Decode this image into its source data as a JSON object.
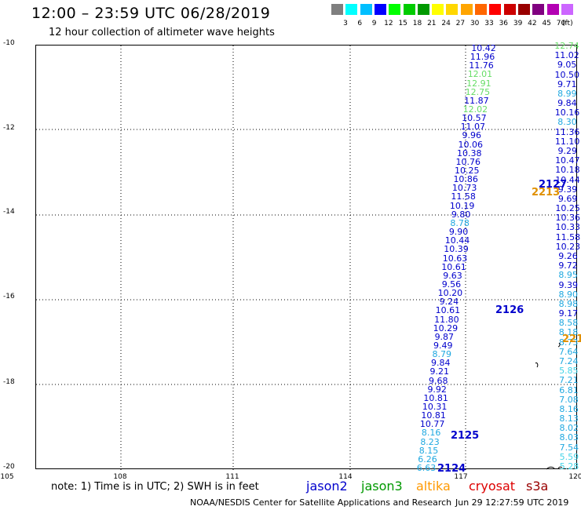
{
  "header": {
    "title": "12:00 – 23:59 UTC 06/28/2019",
    "subtitle": "12 hour collection of altimeter wave heights"
  },
  "scale": {
    "unit": "(ft)",
    "colors": [
      "#7f7f7f",
      "#00ffff",
      "#00bfff",
      "#0000ff",
      "#00ff00",
      "#00cc00",
      "#009900",
      "#ffff00",
      "#ffd700",
      "#ffa500",
      "#ff6600",
      "#ff0000",
      "#cc0000",
      "#990000",
      "#800080",
      "#b300b3",
      "#cc66ff"
    ],
    "ticks": [
      "3",
      "6",
      "9",
      "12",
      "15",
      "18",
      "21",
      "24",
      "27",
      "30",
      "33",
      "36",
      "39",
      "42",
      "45",
      "70"
    ]
  },
  "axes": {
    "lat_labels": [
      "-10",
      "-12",
      "-14",
      "-16",
      "-18",
      "-20"
    ],
    "lon_labels": [
      "105",
      "108",
      "111",
      "114",
      "117",
      "120"
    ]
  },
  "tracks": {
    "desc": [
      {
        "v": "10.42",
        "c": "#0000cc"
      },
      {
        "v": "11.96",
        "c": "#0000cc"
      },
      {
        "v": "11.76",
        "c": "#0000cc"
      },
      {
        "v": "12.01",
        "c": "#66dd66"
      },
      {
        "v": "12.91",
        "c": "#66dd66"
      },
      {
        "v": "12.75",
        "c": "#66dd66"
      },
      {
        "v": "11.87",
        "c": "#0000cc"
      },
      {
        "v": "12.02",
        "c": "#66dd66"
      },
      {
        "v": "10.57",
        "c": "#0000cc"
      },
      {
        "v": "11.07",
        "c": "#0000cc"
      },
      {
        "v": "9.96",
        "c": "#0000cc"
      },
      {
        "v": "10.06",
        "c": "#0000cc"
      },
      {
        "v": "10.38",
        "c": "#0000cc"
      },
      {
        "v": "10.76",
        "c": "#0000cc"
      },
      {
        "v": "10.25",
        "c": "#0000cc"
      },
      {
        "v": "10.86",
        "c": "#0000cc"
      },
      {
        "v": "10.73",
        "c": "#0000cc"
      },
      {
        "v": "11.58",
        "c": "#0000cc"
      },
      {
        "v": "10.19",
        "c": "#0000cc"
      },
      {
        "v": "9.80",
        "c": "#0000cc"
      },
      {
        "v": "8.78",
        "c": "#1fa8e0"
      },
      {
        "v": "9.90",
        "c": "#0000cc"
      },
      {
        "v": "10.44",
        "c": "#0000cc"
      },
      {
        "v": "10.39",
        "c": "#0000cc"
      },
      {
        "v": "10.63",
        "c": "#0000cc"
      },
      {
        "v": "10.61",
        "c": "#0000cc"
      },
      {
        "v": "9.63",
        "c": "#0000cc"
      },
      {
        "v": "9.56",
        "c": "#0000cc"
      },
      {
        "v": "10.20",
        "c": "#0000cc"
      },
      {
        "v": "9.24",
        "c": "#0000cc"
      },
      {
        "v": "10.61",
        "c": "#0000cc"
      },
      {
        "v": "11.80",
        "c": "#0000cc"
      },
      {
        "v": "10.29",
        "c": "#0000cc"
      },
      {
        "v": "9.87",
        "c": "#0000cc"
      },
      {
        "v": "9.49",
        "c": "#0000cc"
      },
      {
        "v": "8.79",
        "c": "#1fa8e0"
      },
      {
        "v": "9.84",
        "c": "#0000cc"
      },
      {
        "v": "9.21",
        "c": "#0000cc"
      },
      {
        "v": "9.68",
        "c": "#0000cc"
      },
      {
        "v": "9.92",
        "c": "#0000cc"
      },
      {
        "v": "10.81",
        "c": "#0000cc"
      },
      {
        "v": "10.31",
        "c": "#0000cc"
      },
      {
        "v": "10.81",
        "c": "#0000cc"
      },
      {
        "v": "10.77",
        "c": "#0000cc"
      },
      {
        "v": "8.16",
        "c": "#1fa8e0"
      },
      {
        "v": "8.23",
        "c": "#1fa8e0"
      },
      {
        "v": "8.15",
        "c": "#1fa8e0"
      },
      {
        "v": "6.26",
        "c": "#1fa8e0"
      },
      {
        "v": "6.63",
        "c": "#1fa8e0"
      }
    ],
    "asc": [
      {
        "v": "12.74",
        "c": "#66dd66"
      },
      {
        "v": "11.02",
        "c": "#0000cc"
      },
      {
        "v": "9.05",
        "c": "#0000cc"
      },
      {
        "v": "10.50",
        "c": "#0000cc"
      },
      {
        "v": "9.71",
        "c": "#0000cc"
      },
      {
        "v": "8.99",
        "c": "#1fa8e0"
      },
      {
        "v": "9.84",
        "c": "#0000cc"
      },
      {
        "v": "10.16",
        "c": "#0000cc"
      },
      {
        "v": "8.30",
        "c": "#1fa8e0"
      },
      {
        "v": "11.36",
        "c": "#0000cc"
      },
      {
        "v": "11.10",
        "c": "#0000cc"
      },
      {
        "v": "9.29",
        "c": "#0000cc"
      },
      {
        "v": "10.47",
        "c": "#0000cc"
      },
      {
        "v": "10.18",
        "c": "#0000cc"
      },
      {
        "v": "10.44",
        "c": "#0000cc"
      },
      {
        "v": "9.39",
        "c": "#0000cc"
      },
      {
        "v": "9.69",
        "c": "#0000cc"
      },
      {
        "v": "10.25",
        "c": "#0000cc"
      },
      {
        "v": "10.36",
        "c": "#0000cc"
      },
      {
        "v": "10.33",
        "c": "#0000cc"
      },
      {
        "v": "11.58",
        "c": "#0000cc"
      },
      {
        "v": "10.23",
        "c": "#0000cc"
      },
      {
        "v": "9.26",
        "c": "#0000cc"
      },
      {
        "v": "9.72",
        "c": "#0000cc"
      },
      {
        "v": "8.95",
        "c": "#1fa8e0"
      },
      {
        "v": "9.39",
        "c": "#0000cc"
      },
      {
        "v": "8.90",
        "c": "#1fa8e0"
      },
      {
        "v": "8.98",
        "c": "#1fa8e0"
      },
      {
        "v": "9.17",
        "c": "#0000cc"
      },
      {
        "v": "8.58",
        "c": "#1fa8e0"
      },
      {
        "v": "8.18",
        "c": "#1fa8e0"
      },
      {
        "v": "8.73",
        "c": "#1fa8e0"
      },
      {
        "v": "7.64",
        "c": "#1fa8e0"
      },
      {
        "v": "7.24",
        "c": "#1fa8e0"
      },
      {
        "v": "5.85",
        "c": "#44d4e8"
      },
      {
        "v": "7.21",
        "c": "#1fa8e0"
      },
      {
        "v": "6.81",
        "c": "#1fa8e0"
      },
      {
        "v": "7.08",
        "c": "#1fa8e0"
      },
      {
        "v": "8.16",
        "c": "#1fa8e0"
      },
      {
        "v": "8.13",
        "c": "#1fa8e0"
      },
      {
        "v": "8.02",
        "c": "#1fa8e0"
      },
      {
        "v": "8.03",
        "c": "#1fa8e0"
      },
      {
        "v": "7.54",
        "c": "#1fa8e0"
      },
      {
        "v": "5.59",
        "c": "#44d4e8"
      },
      {
        "v": "5.28",
        "c": "#44d4e8"
      }
    ]
  },
  "passes": [
    {
      "id": "2127",
      "color": "#0000cc"
    },
    {
      "id": "2213",
      "color": "#e09000"
    },
    {
      "id": "2126",
      "color": "#0000cc"
    },
    {
      "id": "2125",
      "color": "#0000cc"
    },
    {
      "id": "2124",
      "color": "#0000cc"
    },
    {
      "id": "221",
      "color": "#e09000"
    }
  ],
  "footer": {
    "note": "note: 1) Time is in UTC; 2) SWH is in feet",
    "legend": [
      {
        "label": "jason2",
        "color": "#0000cc"
      },
      {
        "label": "jason3",
        "color": "#009900"
      },
      {
        "label": "altika",
        "color": "#ff9900"
      },
      {
        "label": "cryosat",
        "color": "#dd0000"
      },
      {
        "label": "s3a",
        "color": "#990000"
      }
    ],
    "credit": "NOAA/NESDIS Center for Satellite Applications and Research",
    "date": "Jun 29 12:27:59 UTC 2019"
  }
}
